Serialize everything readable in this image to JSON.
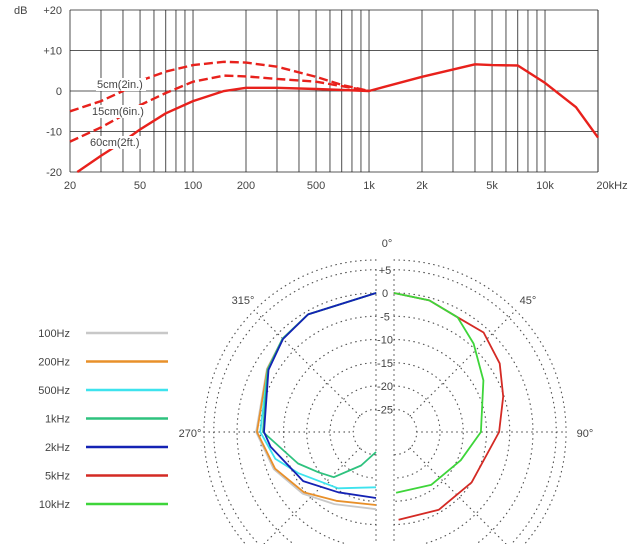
{
  "chart_data": [
    {
      "type": "line",
      "xscale": "log",
      "xlim": [
        20,
        20000
      ],
      "ylim": [
        -20,
        20
      ],
      "ylabel": "dB",
      "grid": true,
      "x_ticks": [
        "20",
        "50",
        "100",
        "200",
        "500",
        "1k",
        "2k",
        "5k",
        "10k",
        "20kHz"
      ],
      "x_tick_values": [
        20,
        50,
        100,
        200,
        500,
        1000,
        2000,
        5000,
        10000,
        20000
      ],
      "y_ticks": [
        "+20",
        "+10",
        "0",
        "-10",
        "-20"
      ],
      "y_tick_values": [
        20,
        10,
        0,
        -10,
        -20
      ],
      "color": "#e8211c",
      "series": [
        {
          "name": "5cm(2in.)",
          "style": "dashed",
          "points": [
            [
              20,
              -5
            ],
            [
              30,
              -2.5
            ],
            [
              40,
              0
            ],
            [
              50,
              2.5
            ],
            [
              70,
              4.8
            ],
            [
              100,
              6.4
            ],
            [
              150,
              7.2
            ],
            [
              200,
              7
            ],
            [
              300,
              6
            ],
            [
              500,
              3.5
            ],
            [
              700,
              1.5
            ],
            [
              1000,
              0
            ]
          ]
        },
        {
          "name": "15cm(6in.)",
          "style": "dashed",
          "points": [
            [
              20,
              -12.5
            ],
            [
              30,
              -9
            ],
            [
              40,
              -6
            ],
            [
              50,
              -3.5
            ],
            [
              70,
              -0.5
            ],
            [
              100,
              2.3
            ],
            [
              150,
              3.8
            ],
            [
              200,
              3.6
            ],
            [
              300,
              3
            ],
            [
              500,
              2.3
            ],
            [
              700,
              1.2
            ],
            [
              1000,
              0
            ]
          ]
        },
        {
          "name": "60cm(2ft.)",
          "style": "solid",
          "points": [
            [
              22,
              -20
            ],
            [
              30,
              -16
            ],
            [
              40,
              -12.5
            ],
            [
              50,
              -9.5
            ],
            [
              70,
              -5.5
            ],
            [
              100,
              -2.5
            ],
            [
              150,
              0
            ],
            [
              200,
              0.8
            ],
            [
              300,
              0.8
            ],
            [
              500,
              0.5
            ],
            [
              1000,
              0
            ],
            [
              2000,
              3.5
            ],
            [
              4000,
              6.6
            ],
            [
              5000,
              6.4
            ],
            [
              7000,
              6.3
            ],
            [
              10000,
              2
            ],
            [
              15000,
              -4
            ],
            [
              20000,
              -11.5
            ]
          ]
        }
      ]
    },
    {
      "type": "polar",
      "rlim_db": [
        -25,
        5
      ],
      "r_ticks": [
        "+5",
        "0",
        "-5",
        "-10",
        "-15",
        "-20",
        "-25"
      ],
      "angle_labels": [
        "0°",
        "45°",
        "90°",
        "270°",
        "315°"
      ],
      "series": [
        {
          "name": "100Hz",
          "color": "#c8c8c8",
          "side": "left",
          "points": [
            [
              0,
              0
            ],
            [
              330,
              -0.7
            ],
            [
              315,
              -1.5
            ],
            [
              300,
              -2.8
            ],
            [
              270,
              -4.1
            ],
            [
              250,
              -6.5
            ],
            [
              230,
              -9.3
            ],
            [
              210,
              -12
            ],
            [
              180,
              -13.3
            ]
          ]
        },
        {
          "name": "200Hz",
          "color": "#e8902a",
          "side": "left",
          "points": [
            [
              0,
              0
            ],
            [
              330,
              -0.7
            ],
            [
              315,
              -1.5
            ],
            [
              300,
              -2.9
            ],
            [
              270,
              -4.3
            ],
            [
              250,
              -6.8
            ],
            [
              230,
              -9.7
            ],
            [
              210,
              -12.8
            ],
            [
              180,
              -14.2
            ]
          ]
        },
        {
          "name": "500Hz",
          "color": "#3ee3ee",
          "side": "left",
          "points": [
            [
              0,
              0
            ],
            [
              330,
              -0.7
            ],
            [
              315,
              -1.5
            ],
            [
              300,
              -3
            ],
            [
              270,
              -5
            ],
            [
              255,
              -7.5
            ],
            [
              242,
              -11
            ],
            [
              214,
              -15.3
            ],
            [
              195,
              -17.5
            ],
            [
              180,
              -18
            ]
          ]
        },
        {
          "name": "1kHz",
          "color": "#2ec27e",
          "side": "left",
          "points": [
            [
              0,
              0
            ],
            [
              330,
              -0.7
            ],
            [
              315,
              -1.5
            ],
            [
              300,
              -3
            ],
            [
              270,
              -5.6
            ],
            [
              248,
              -11.8
            ],
            [
              235,
              -14.8
            ],
            [
              223,
              -16.6
            ],
            [
              204,
              -22
            ],
            [
              180,
              -25.6
            ]
          ]
        },
        {
          "name": "2kHz",
          "color": "#1422b4",
          "side": "left",
          "points": [
            [
              0,
              0
            ],
            [
              330,
              -0.7
            ],
            [
              315,
              -1.6
            ],
            [
              300,
              -3.2
            ],
            [
              270,
              -5.8
            ],
            [
              262,
              -7
            ],
            [
              236,
              -11
            ],
            [
              212,
              -14.6
            ],
            [
              180,
              -15.7
            ]
          ]
        },
        {
          "name": "5kHz",
          "color": "#d42a24",
          "side": "right",
          "points": [
            [
              0,
              0
            ],
            [
              15,
              -0.6
            ],
            [
              29,
              -1.7
            ],
            [
              42,
              -1.1
            ],
            [
              57,
              -2.8
            ],
            [
              72,
              -5.2
            ],
            [
              90,
              -7.3
            ],
            [
              123,
              -10
            ],
            [
              150,
              -10.6
            ],
            [
              177,
              -11
            ]
          ]
        },
        {
          "name": "10kHz",
          "color": "#3ed53a",
          "side": "right",
          "points": [
            [
              0,
              0
            ],
            [
              15,
              -0.6
            ],
            [
              29,
              -1.7
            ],
            [
              42,
              -4.3
            ],
            [
              60,
              -7.7
            ],
            [
              90,
              -11.2
            ],
            [
              113,
              -14.3
            ],
            [
              145,
              -16
            ],
            [
              178,
              -16.8
            ]
          ]
        }
      ]
    }
  ]
}
